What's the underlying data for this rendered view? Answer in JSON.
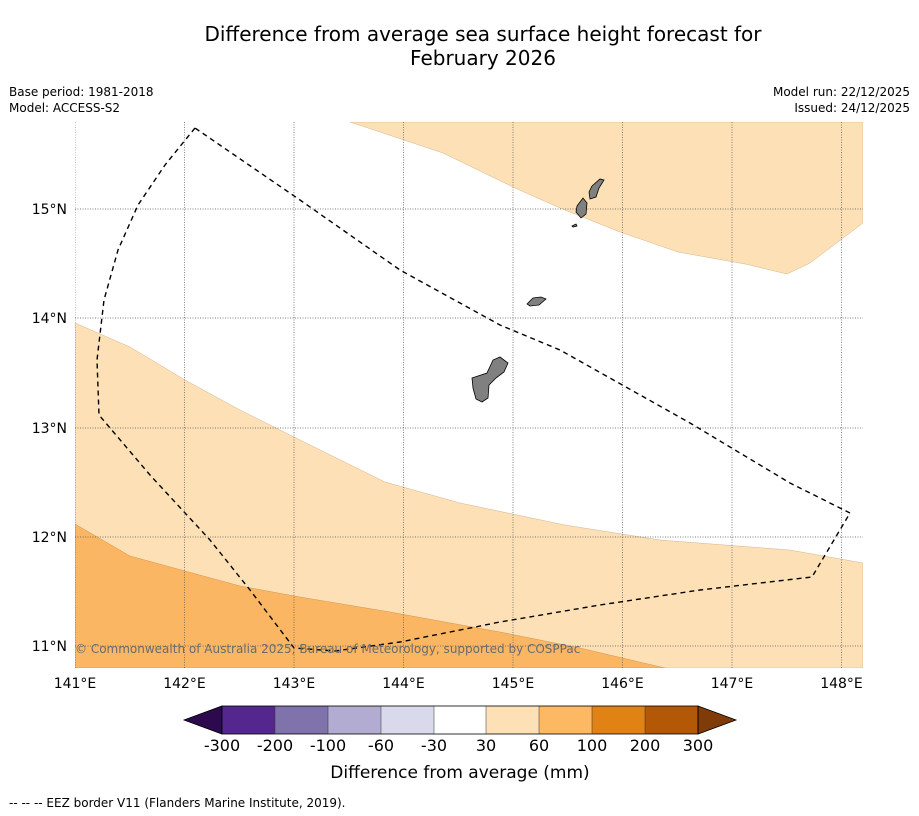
{
  "header": {
    "title_line1": "Difference from average sea surface height forecast for",
    "title_line2": "February 2026",
    "base_period": "Base period: 1981-2018",
    "model": "Model: ACCESS-S2",
    "model_run": "Model run: 22/12/2025",
    "issued": "Issued: 24/12/2025"
  },
  "map": {
    "longitude_labels": [
      "141°E",
      "142°E",
      "143°E",
      "144°E",
      "145°E",
      "146°E",
      "147°E",
      "148°E"
    ],
    "latitude_labels": [
      "15°N",
      "14°N",
      "13°N",
      "12°N",
      "11°N"
    ],
    "copyright": "© Commonwealth of Australia 2025, Bureau of Meteorology, supported by COSPPac",
    "colors": {
      "band_30_60": "#fde0b5",
      "band_60_100": "#fab662",
      "land": "#808080",
      "eez": "#000000"
    }
  },
  "colorbar": {
    "tick_labels": [
      "-300",
      "-200",
      "-100",
      "-60",
      "-30",
      "30",
      "60",
      "100",
      "200",
      "300"
    ],
    "title": "Difference from average (mm)",
    "colors": [
      "#2d0a4e",
      "#54278f",
      "#8073ac",
      "#b2abd2",
      "#d8daeb",
      "#ffffff",
      "#fee0b6",
      "#fdb863",
      "#e08214",
      "#b35806",
      "#7f3b08"
    ]
  },
  "footer": {
    "legend_note": "--  --  -- EEZ border V11 (Flanders Marine Institute, 2019)."
  }
}
